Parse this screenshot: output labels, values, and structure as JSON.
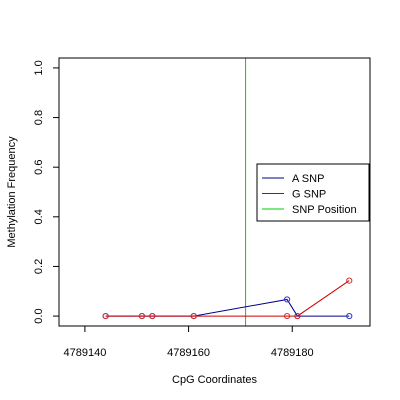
{
  "chart_data": {
    "type": "line",
    "xlabel": "CpG Coordinates",
    "ylabel": "Methylation Frequency",
    "xlim": [
      4789135,
      4789195
    ],
    "ylim": [
      -0.04,
      1.04
    ],
    "x_ticks": [
      4789140,
      4789160,
      4789180
    ],
    "x_tick_labels": [
      "4789140",
      "4789160",
      "4789180"
    ],
    "y_ticks": [
      0.0,
      0.2,
      0.4,
      0.6,
      0.8,
      1.0
    ],
    "y_tick_labels": [
      "0.0",
      "0.2",
      "0.4",
      "0.6",
      "0.8",
      "1.0"
    ],
    "snp_position": 4789171,
    "series": [
      {
        "name": "A SNP",
        "color": "#00008B",
        "x": [
          4789144,
          4789151,
          4789153,
          4789161,
          4789179,
          4789181,
          4789191
        ],
        "y": [
          0.0,
          0.0,
          0.0,
          0.0,
          0.067,
          0.0,
          0.0
        ]
      },
      {
        "name": "G SNP",
        "color": "#CD0000",
        "x": [
          4789144,
          4789151,
          4789153,
          4789161,
          4789179,
          4789181,
          4789191
        ],
        "y": [
          0.0,
          0.0,
          0.0,
          0.0,
          0.0,
          0.0,
          0.143
        ]
      }
    ],
    "legend": {
      "position": "right",
      "entries": [
        {
          "label": "A SNP",
          "color": "#00008B"
        },
        {
          "label": "G SNP",
          "color": "#CD0000"
        },
        {
          "label": "SNP Position",
          "color": "#00CD00"
        }
      ]
    },
    "snp_line_color": "#00CD00",
    "marker_color": "#CD3333"
  }
}
